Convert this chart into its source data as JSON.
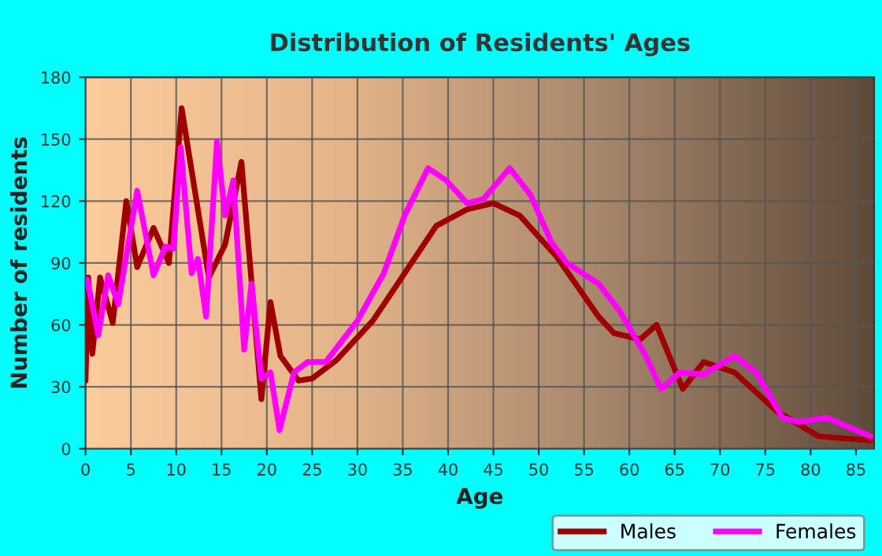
{
  "chart_data": {
    "type": "line",
    "title": "Distribution of Residents' Ages",
    "xlabel": "Age",
    "ylabel": "Number of residents",
    "xlim": [
      0,
      87
    ],
    "xticks": [
      0,
      5,
      10,
      15,
      20,
      25,
      30,
      35,
      40,
      45,
      50,
      55,
      60,
      65,
      70,
      75,
      80,
      85
    ],
    "ylim": [
      0,
      180
    ],
    "yticks": [
      0,
      30,
      60,
      90,
      120,
      150,
      180
    ],
    "grid": true,
    "legend": "bottom right",
    "line_style": "solid",
    "marker": "none",
    "series": [
      {
        "name": "Males",
        "color": "#a00000",
        "x": [
          0,
          0.3,
          0.75,
          1.6,
          3,
          4.5,
          5.7,
          7.5,
          9.2,
          10.6,
          13.6,
          15.4,
          17.2,
          19.4,
          20.4,
          21.5,
          23.5,
          25,
          27.7,
          31.7,
          35.2,
          38.7,
          42.1,
          45,
          47.9,
          52,
          56.6,
          58.3,
          61.2,
          63,
          65.9,
          68.2,
          71.6,
          76.3,
          80.9,
          86.6
        ],
        "values": [
          33,
          83,
          46,
          83,
          61,
          120,
          88,
          107,
          90,
          165,
          83,
          99,
          139,
          24,
          71,
          45,
          33,
          34,
          43,
          62,
          85,
          108,
          116,
          119,
          113,
          93,
          64,
          56,
          53,
          60,
          29,
          42,
          37,
          18,
          6,
          4
        ]
      },
      {
        "name": "Females",
        "color": "#ff00ff",
        "x": [
          0.2,
          1.4,
          2.5,
          3.6,
          5.7,
          7.5,
          8.8,
          9.7,
          10.5,
          11.7,
          12.4,
          13.3,
          14.5,
          15.4,
          16.3,
          17.5,
          18.3,
          19.4,
          20.4,
          21.4,
          23,
          24.5,
          26.5,
          30,
          32.9,
          35.2,
          37.8,
          39.8,
          42.1,
          43.9,
          46.8,
          49.1,
          51.4,
          53.1,
          56.6,
          58.9,
          61.8,
          63.5,
          65.6,
          68.2,
          71.6,
          74,
          76.9,
          78.6,
          81.8,
          86.6
        ],
        "values": [
          82,
          55,
          84,
          70,
          125,
          84,
          98,
          97,
          146,
          85,
          92,
          64,
          149,
          113,
          130,
          48,
          80,
          34,
          37,
          9,
          37,
          42,
          42,
          62,
          85,
          113,
          136,
          130,
          119,
          121,
          136,
          123,
          100,
          90,
          80,
          67,
          45,
          29,
          37,
          36,
          45,
          37,
          15,
          13,
          15,
          6
        ]
      }
    ]
  }
}
